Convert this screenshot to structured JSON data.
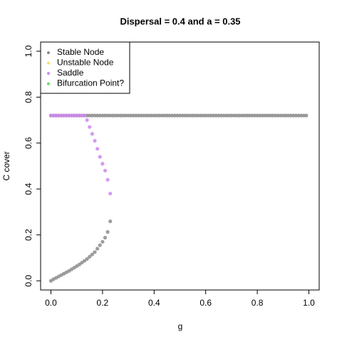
{
  "chart_data": {
    "type": "scatter",
    "title": "Dispersal =  0.4 and a = 0.35",
    "x_label": "g",
    "y_label": "C cover",
    "xlim": [
      -0.04,
      1.04
    ],
    "ylim": [
      -0.04,
      1.04
    ],
    "xticks": [
      {
        "value": 0,
        "label": "0.0"
      },
      0.2,
      0.4,
      0.6,
      0.8,
      {
        "value": 1,
        "label": "1.0"
      }
    ],
    "yticks": [
      {
        "value": 0,
        "label": "0.0"
      },
      0.2,
      0.4,
      0.6,
      0.8,
      {
        "value": 1,
        "label": "1.0"
      }
    ],
    "legend": "top-left",
    "series": [
      {
        "name": "Stable Node",
        "color": "#8c8c8c",
        "x": [
          0,
          0.01,
          0.02,
          0.03,
          0.04,
          0.05,
          0.06,
          0.07,
          0.08,
          0.09,
          0.1,
          0.11,
          0.12,
          0.13,
          0.14,
          0.15,
          0.16,
          0.17,
          0.18,
          0.19,
          0.2,
          0.21,
          0.22,
          0.23,
          0.24,
          0.25,
          0.26,
          0.27,
          0.28,
          0.29,
          0.3,
          0.31,
          0.32,
          0.33,
          0.34,
          0.35,
          0.36,
          0.37,
          0.38,
          0.39,
          0.4,
          0.41,
          0.42,
          0.43,
          0.44,
          0.45,
          0.46,
          0.47,
          0.48,
          0.49,
          0.5,
          0.51,
          0.52,
          0.53,
          0.54,
          0.55,
          0.56,
          0.57,
          0.58,
          0.59,
          0.6,
          0.61,
          0.62,
          0.63,
          0.64,
          0.65,
          0.66,
          0.67,
          0.68,
          0.69,
          0.7,
          0.71,
          0.72,
          0.73,
          0.74,
          0.75,
          0.76,
          0.77,
          0.78,
          0.79,
          0.8,
          0.81,
          0.82,
          0.83,
          0.84,
          0.85,
          0.86,
          0.87,
          0.88,
          0.89,
          0.9,
          0.91,
          0.92,
          0.93,
          0.94,
          0.95,
          0.96,
          0.97,
          0.98,
          0.99,
          0,
          0.01,
          0.02,
          0.03,
          0.04,
          0.05,
          0.06,
          0.07,
          0.08,
          0.09,
          0.1,
          0.11,
          0.12,
          0.13,
          0.14,
          0.15,
          0.16,
          0.17,
          0.18,
          0.19,
          0.2,
          0.21,
          0.22,
          0.23
        ],
        "values": [
          0.72,
          0.72,
          0.72,
          0.72,
          0.72,
          0.72,
          0.72,
          0.72,
          0.72,
          0.72,
          0.72,
          0.72,
          0.72,
          0.72,
          0.72,
          0.72,
          0.72,
          0.72,
          0.72,
          0.72,
          0.72,
          0.72,
          0.72,
          0.72,
          0.72,
          0.72,
          0.72,
          0.72,
          0.72,
          0.72,
          0.72,
          0.72,
          0.72,
          0.72,
          0.72,
          0.72,
          0.72,
          0.72,
          0.72,
          0.72,
          0.72,
          0.72,
          0.72,
          0.72,
          0.72,
          0.72,
          0.72,
          0.72,
          0.72,
          0.72,
          0.72,
          0.72,
          0.72,
          0.72,
          0.72,
          0.72,
          0.72,
          0.72,
          0.72,
          0.72,
          0.72,
          0.72,
          0.72,
          0.72,
          0.72,
          0.72,
          0.72,
          0.72,
          0.72,
          0.72,
          0.72,
          0.72,
          0.72,
          0.72,
          0.72,
          0.72,
          0.72,
          0.72,
          0.72,
          0.72,
          0.72,
          0.72,
          0.72,
          0.72,
          0.72,
          0.72,
          0.72,
          0.72,
          0.72,
          0.72,
          0.72,
          0.72,
          0.72,
          0.72,
          0.72,
          0.72,
          0.72,
          0.72,
          0.72,
          0.72,
          0,
          0.007,
          0.013,
          0.019,
          0.025,
          0.031,
          0.037,
          0.043,
          0.05,
          0.057,
          0.064,
          0.071,
          0.079,
          0.087,
          0.095,
          0.105,
          0.115,
          0.125,
          0.14,
          0.155,
          0.17,
          0.188,
          0.213,
          0.259
        ]
      },
      {
        "name": "Unstable Node",
        "color": "#ffd966",
        "x": [],
        "values": []
      },
      {
        "name": "Saddle",
        "color": "#cc88ee",
        "x": [
          0,
          0.01,
          0.02,
          0.03,
          0.04,
          0.05,
          0.06,
          0.07,
          0.08,
          0.09,
          0.1,
          0.11,
          0.12,
          0.13,
          0.14,
          0.15,
          0.16,
          0.17,
          0.18,
          0.19,
          0.2,
          0.21,
          0.22,
          0.23
        ],
        "values": [
          0.72,
          0.72,
          0.72,
          0.72,
          0.72,
          0.72,
          0.72,
          0.72,
          0.72,
          0.72,
          0.72,
          0.72,
          0.72,
          0.72,
          0.7,
          0.67,
          0.64,
          0.61,
          0.575,
          0.54,
          0.51,
          0.48,
          0.44,
          0.38
        ]
      },
      {
        "name": "Bifurcation Point?",
        "color": "#66dd66",
        "x": [],
        "values": []
      }
    ]
  }
}
